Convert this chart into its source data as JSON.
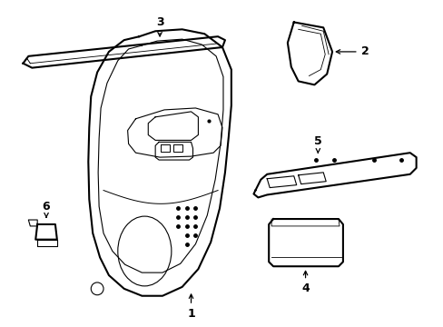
{
  "background_color": "#ffffff",
  "line_color": "#000000",
  "fig_width": 4.89,
  "fig_height": 3.6,
  "dpi": 100,
  "label_fontsize": 9,
  "label_fontweight": "bold"
}
